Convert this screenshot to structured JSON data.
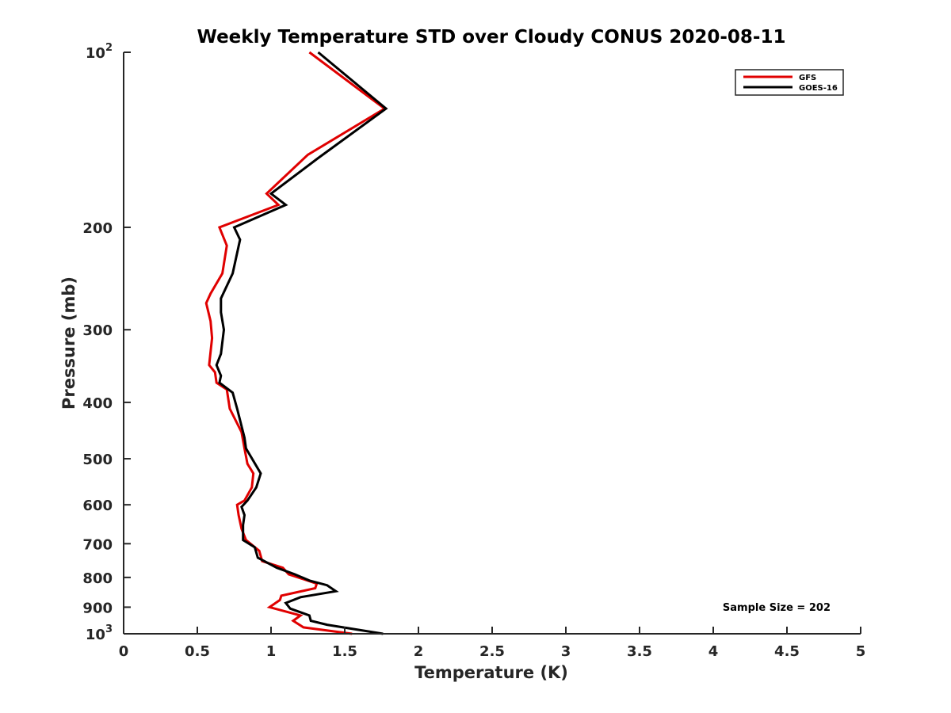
{
  "chart_data": {
    "type": "line",
    "title": "Weekly Temperature STD over Cloudy CONUS 2020-08-11",
    "xlabel": "Temperature (K)",
    "ylabel": "Pressure (mb)",
    "xlim": [
      0,
      5
    ],
    "ylim": [
      100,
      1000
    ],
    "y_scale": "log",
    "y_reversed": true,
    "grid": false,
    "legend_position": "top-right",
    "x_ticks": [
      0,
      0.5,
      1,
      1.5,
      2,
      2.5,
      3,
      3.5,
      4,
      4.5,
      5
    ],
    "x_tick_labels": [
      "0",
      "0.5",
      "1",
      "1.5",
      "2",
      "2.5",
      "3",
      "3.5",
      "4",
      "4.5",
      "5"
    ],
    "y_ticks": [
      100,
      200,
      300,
      400,
      500,
      600,
      700,
      800,
      900,
      1000
    ],
    "y_tick_labels": [
      {
        "base": "10",
        "exp": "2"
      },
      {
        "base": "200",
        "exp": ""
      },
      {
        "base": "300",
        "exp": ""
      },
      {
        "base": "400",
        "exp": ""
      },
      {
        "base": "500",
        "exp": ""
      },
      {
        "base": "600",
        "exp": ""
      },
      {
        "base": "700",
        "exp": ""
      },
      {
        "base": "800",
        "exp": ""
      },
      {
        "base": "900",
        "exp": ""
      },
      {
        "base": "10",
        "exp": "3"
      }
    ],
    "annotation": "Sample Size = 202",
    "series": [
      {
        "name": "GFS",
        "color": "#e00000",
        "points": [
          [
            1.26,
            100
          ],
          [
            1.77,
            125
          ],
          [
            1.25,
            150
          ],
          [
            0.97,
            175
          ],
          [
            1.05,
            183
          ],
          [
            0.65,
            200
          ],
          [
            0.7,
            215
          ],
          [
            0.67,
            240
          ],
          [
            0.59,
            260
          ],
          [
            0.56,
            270
          ],
          [
            0.59,
            290
          ],
          [
            0.6,
            310
          ],
          [
            0.58,
            345
          ],
          [
            0.62,
            355
          ],
          [
            0.63,
            370
          ],
          [
            0.7,
            380
          ],
          [
            0.72,
            410
          ],
          [
            0.8,
            450
          ],
          [
            0.82,
            480
          ],
          [
            0.84,
            510
          ],
          [
            0.88,
            530
          ],
          [
            0.87,
            560
          ],
          [
            0.82,
            590
          ],
          [
            0.77,
            600
          ],
          [
            0.78,
            625
          ],
          [
            0.8,
            660
          ],
          [
            0.83,
            690
          ],
          [
            0.92,
            720
          ],
          [
            0.94,
            750
          ],
          [
            1.08,
            770
          ],
          [
            1.12,
            790
          ],
          [
            1.31,
            820
          ],
          [
            1.3,
            835
          ],
          [
            1.07,
            860
          ],
          [
            1.06,
            875
          ],
          [
            0.99,
            900
          ],
          [
            1.2,
            930
          ],
          [
            1.15,
            950
          ],
          [
            1.22,
            975
          ],
          [
            1.55,
            1000
          ]
        ]
      },
      {
        "name": "GOES-16",
        "color": "#000000",
        "points": [
          [
            1.32,
            100
          ],
          [
            1.78,
            125
          ],
          [
            1.32,
            152
          ],
          [
            1.0,
            175
          ],
          [
            1.1,
            183
          ],
          [
            0.75,
            200
          ],
          [
            0.79,
            210
          ],
          [
            0.74,
            240
          ],
          [
            0.66,
            265
          ],
          [
            0.66,
            280
          ],
          [
            0.68,
            300
          ],
          [
            0.66,
            330
          ],
          [
            0.63,
            345
          ],
          [
            0.66,
            360
          ],
          [
            0.65,
            370
          ],
          [
            0.74,
            385
          ],
          [
            0.77,
            410
          ],
          [
            0.82,
            460
          ],
          [
            0.83,
            480
          ],
          [
            0.93,
            530
          ],
          [
            0.9,
            560
          ],
          [
            0.84,
            590
          ],
          [
            0.8,
            605
          ],
          [
            0.82,
            625
          ],
          [
            0.81,
            650
          ],
          [
            0.81,
            690
          ],
          [
            0.89,
            710
          ],
          [
            0.91,
            740
          ],
          [
            1.04,
            770
          ],
          [
            1.16,
            790
          ],
          [
            1.26,
            810
          ],
          [
            1.38,
            825
          ],
          [
            1.44,
            845
          ],
          [
            1.2,
            865
          ],
          [
            1.1,
            885
          ],
          [
            1.13,
            905
          ],
          [
            1.26,
            930
          ],
          [
            1.27,
            950
          ],
          [
            1.38,
            965
          ],
          [
            1.76,
            1000
          ]
        ]
      }
    ]
  }
}
